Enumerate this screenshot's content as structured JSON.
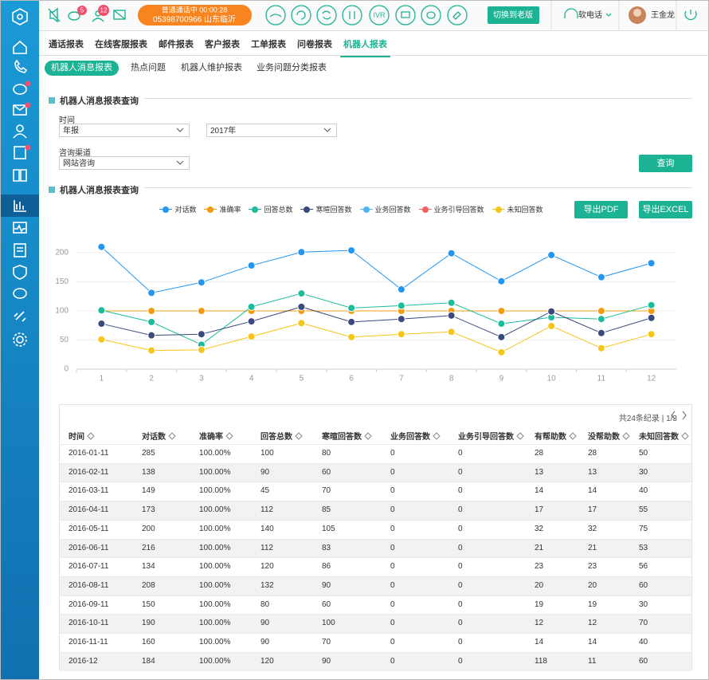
{
  "topbar": {
    "badges": [
      "5",
      "12"
    ],
    "call_status": "普通通话中 00:00:28",
    "call_number": "05398700966 山东临沂",
    "ivr": "IVR",
    "switch_button": "切换到老版",
    "softphone": "软电话",
    "user": "王金龙"
  },
  "tabs": {
    "items": [
      "通话报表",
      "在线客服报表",
      "邮件报表",
      "客户报表",
      "工单报表",
      "问卷报表",
      "机器人报表"
    ],
    "active": 6
  },
  "subtabs": {
    "items": [
      "机器人消息报表",
      "热点问题",
      "机器人维护报表",
      "业务问题分类报表"
    ],
    "active": 0
  },
  "query": {
    "title": "机器人消息报表查询",
    "time_label": "时间",
    "time_type": "年报",
    "year": "2017年",
    "channel_label": "咨询渠道",
    "channel": "网站咨询",
    "button": "查询"
  },
  "report": {
    "title": "机器人消息报表查询",
    "export_pdf": "导出PDF",
    "export_excel": "导出EXCEL"
  },
  "chart_data": {
    "type": "line",
    "categories": [
      "1",
      "2",
      "3",
      "4",
      "5",
      "6",
      "7",
      "8",
      "9",
      "10",
      "11",
      "12"
    ],
    "series": [
      {
        "name": "对话数",
        "color": "#2196f3",
        "values": [
          210,
          131,
          149,
          178,
          201,
          204,
          137,
          199,
          151,
          196,
          158,
          182
        ]
      },
      {
        "name": "准确率",
        "color": "#f39c12",
        "values": [
          100,
          100,
          100,
          100,
          100,
          100,
          100,
          100,
          100,
          100,
          100,
          100
        ]
      },
      {
        "name": "回答总数",
        "color": "#1abc9c",
        "values": [
          101,
          81,
          42,
          107,
          130,
          105,
          109,
          114,
          78,
          89,
          86,
          110
        ]
      },
      {
        "name": "寒暄回答数",
        "color": "#3a4a7d",
        "values": [
          78,
          58,
          60,
          82,
          107,
          81,
          86,
          92,
          55,
          99,
          62,
          88
        ]
      },
      {
        "name": "业务回答数",
        "color": "#4fb8f0",
        "values": [
          null,
          null,
          null,
          null,
          null,
          null,
          null,
          null,
          null,
          null,
          null,
          null
        ]
      },
      {
        "name": "业务引导回答数",
        "color": "#f06262",
        "values": [
          null,
          null,
          null,
          null,
          null,
          null,
          null,
          null,
          null,
          null,
          null,
          null
        ]
      },
      {
        "name": "未知回答数",
        "color": "#f5c518",
        "values": [
          51,
          32,
          33,
          56,
          79,
          55,
          60,
          64,
          29,
          74,
          36,
          60
        ]
      }
    ],
    "ylim": [
      0,
      230
    ],
    "yticks": [
      0,
      50,
      100,
      150,
      200
    ],
    "grid": true
  },
  "table": {
    "pagination": "共24条纪录 | 1/3",
    "columns": [
      "时间",
      "对话数",
      "准确率",
      "回答总数",
      "寒暄回答数",
      "业务回答数",
      "业务引导回答数",
      "有帮助数",
      "没帮助数",
      "未知回答数"
    ],
    "rows": [
      [
        "2016-01-11",
        "285",
        "100.00%",
        "100",
        "80",
        "0",
        "0",
        "28",
        "28",
        "50"
      ],
      [
        "2016-02-11",
        "138",
        "100.00%",
        "90",
        "60",
        "0",
        "0",
        "13",
        "13",
        "30"
      ],
      [
        "2016-03-11",
        "149",
        "100.00%",
        "45",
        "70",
        "0",
        "0",
        "14",
        "14",
        "40"
      ],
      [
        "2016-04-11",
        "173",
        "100.00%",
        "112",
        "85",
        "0",
        "0",
        "17",
        "17",
        "55"
      ],
      [
        "2016-05-11",
        "200",
        "100.00%",
        "140",
        "105",
        "0",
        "0",
        "32",
        "32",
        "75"
      ],
      [
        "2016-06-11",
        "216",
        "100.00%",
        "112",
        "83",
        "0",
        "0",
        "21",
        "21",
        "53"
      ],
      [
        "2016-07-11",
        "134",
        "100.00%",
        "120",
        "86",
        "0",
        "0",
        "23",
        "23",
        "56"
      ],
      [
        "2016-08-11",
        "208",
        "100.00%",
        "132",
        "90",
        "0",
        "0",
        "20",
        "20",
        "60"
      ],
      [
        "2016-09-11",
        "150",
        "100.00%",
        "80",
        "60",
        "0",
        "0",
        "19",
        "19",
        "30"
      ],
      [
        "2016-10-11",
        "190",
        "100.00%",
        "90",
        "100",
        "0",
        "0",
        "12",
        "12",
        "70"
      ],
      [
        "2016-11-11",
        "160",
        "100.00%",
        "90",
        "70",
        "0",
        "0",
        "14",
        "14",
        "40"
      ],
      [
        "2016-12",
        "184",
        "100.00%",
        "120",
        "90",
        "0",
        "0",
        "118",
        "11",
        "60"
      ]
    ]
  }
}
